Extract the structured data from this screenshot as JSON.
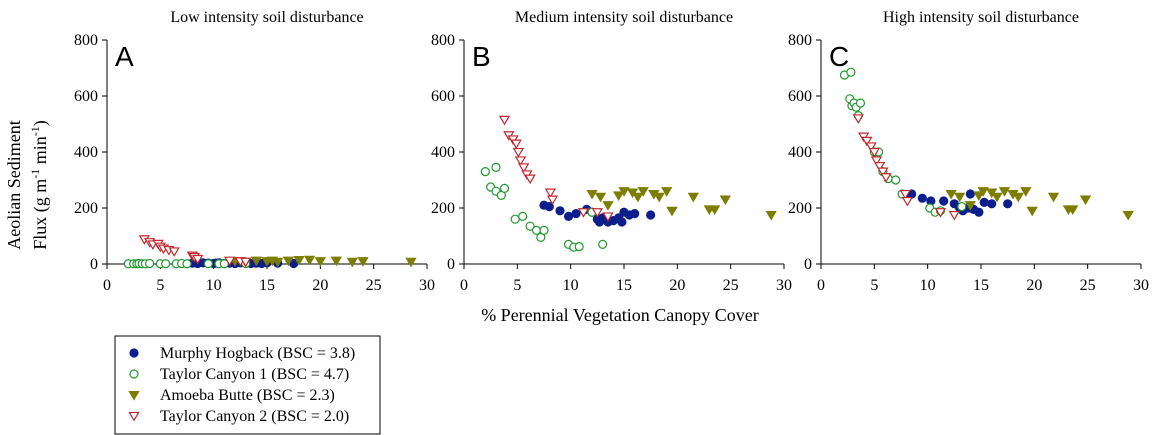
{
  "figure": {
    "xlabel": "% Perennial Vegetation Canopy Cover",
    "ylabel_line1": "Aeolian Sediment",
    "ylabel_line2_prefix": "Flux (g m",
    "ylabel_sup1": "-1",
    "ylabel_mid": " min",
    "ylabel_sup2": "-1",
    "ylabel_suffix": ")"
  },
  "legend": {
    "position": "bottom-left",
    "entries": [
      {
        "key": "murphy",
        "label": "Murphy Hogback (BSC = 3.8)"
      },
      {
        "key": "taylor1",
        "label": "Taylor Canyon 1 (BSC = 4.7)"
      },
      {
        "key": "amoeba",
        "label": "Amoeba Butte (BSC = 2.3)"
      },
      {
        "key": "taylor2",
        "label": "Taylor Canyon 2 (BSC = 2.0)"
      }
    ]
  },
  "series_styles": {
    "murphy": {
      "marker": "filled-circle",
      "color": "#0b1f8c"
    },
    "taylor1": {
      "marker": "open-circle",
      "color": "#1f9a2e"
    },
    "amoeba": {
      "marker": "filled-triangle-down",
      "color": "#7d7d00"
    },
    "taylor2": {
      "marker": "open-triangle-down",
      "color": "#c0282d"
    }
  },
  "chart_data": [
    {
      "type": "scatter",
      "title": "Low intensity soil disturbance",
      "panel_label": "A",
      "xlim": [
        0,
        30
      ],
      "ylim": [
        0,
        800
      ],
      "xticks": [
        0,
        5,
        10,
        15,
        20,
        25,
        30
      ],
      "yticks": [
        0,
        200,
        400,
        600,
        800
      ],
      "grid": false,
      "series": [
        {
          "key": "murphy",
          "name": "Murphy Hogback (BSC = 3.8)",
          "points": [
            [
              8,
              3
            ],
            [
              8.5,
              2
            ],
            [
              9,
              4
            ],
            [
              9.5,
              3
            ],
            [
              10,
              2
            ],
            [
              10.2,
              3
            ],
            [
              10.5,
              4
            ],
            [
              11,
              2
            ],
            [
              11.5,
              3
            ],
            [
              12,
              2
            ],
            [
              12.5,
              4
            ],
            [
              13,
              3
            ],
            [
              13.5,
              2
            ],
            [
              14,
              3
            ],
            [
              14.5,
              2
            ],
            [
              15,
              4
            ],
            [
              16,
              3
            ],
            [
              17.5,
              2
            ]
          ]
        },
        {
          "key": "taylor1",
          "name": "Taylor Canyon 1 (BSC = 4.7)",
          "points": [
            [
              2,
              1
            ],
            [
              2.5,
              1
            ],
            [
              2.8,
              1
            ],
            [
              3,
              2
            ],
            [
              3.3,
              1
            ],
            [
              3.6,
              1
            ],
            [
              4,
              2
            ],
            [
              5,
              1
            ],
            [
              5.5,
              1
            ],
            [
              6.5,
              1
            ],
            [
              7,
              2
            ],
            [
              7.5,
              1
            ],
            [
              9.5,
              1
            ],
            [
              10.5,
              1
            ],
            [
              11,
              1
            ],
            [
              13,
              2
            ]
          ]
        },
        {
          "key": "amoeba",
          "name": "Amoeba Butte (BSC = 2.3)",
          "points": [
            [
              12,
              10
            ],
            [
              13,
              8
            ],
            [
              14,
              12
            ],
            [
              15,
              10
            ],
            [
              15.5,
              12
            ],
            [
              16,
              8
            ],
            [
              17,
              12
            ],
            [
              18,
              14
            ],
            [
              19,
              15
            ],
            [
              20,
              10
            ],
            [
              21.5,
              12
            ],
            [
              23,
              8
            ],
            [
              24,
              10
            ],
            [
              28.5,
              8
            ]
          ]
        },
        {
          "key": "taylor2",
          "name": "Taylor Canyon 2 (BSC = 2.0)",
          "points": [
            [
              3.5,
              88
            ],
            [
              4,
              78
            ],
            [
              4.3,
              70
            ],
            [
              4.8,
              72
            ],
            [
              5,
              62
            ],
            [
              5.3,
              55
            ],
            [
              5.8,
              50
            ],
            [
              6.3,
              45
            ],
            [
              8,
              30
            ],
            [
              8.2,
              25
            ],
            [
              8.5,
              18
            ],
            [
              11.5,
              12
            ],
            [
              12.5,
              10
            ],
            [
              13,
              8
            ]
          ]
        }
      ]
    },
    {
      "type": "scatter",
      "title": "Medium intensity soil disturbance",
      "panel_label": "B",
      "xlim": [
        0,
        30
      ],
      "ylim": [
        0,
        800
      ],
      "xticks": [
        0,
        5,
        10,
        15,
        20,
        25,
        30
      ],
      "yticks": [
        0,
        200,
        400,
        600,
        800
      ],
      "grid": false,
      "series": [
        {
          "key": "murphy",
          "name": "Murphy Hogback (BSC = 3.8)",
          "points": [
            [
              7.5,
              210
            ],
            [
              8,
              205
            ],
            [
              9,
              190
            ],
            [
              9.8,
              170
            ],
            [
              10.5,
              180
            ],
            [
              11.5,
              195
            ],
            [
              12,
              185
            ],
            [
              12.5,
              160
            ],
            [
              12.7,
              150
            ],
            [
              13,
              165
            ],
            [
              13.5,
              150
            ],
            [
              14,
              155
            ],
            [
              14.5,
              165
            ],
            [
              14.8,
              150
            ],
            [
              15,
              185
            ],
            [
              15.5,
              175
            ],
            [
              16,
              180
            ],
            [
              17.5,
              175
            ]
          ]
        },
        {
          "key": "taylor1",
          "name": "Taylor Canyon 1 (BSC = 4.7)",
          "points": [
            [
              2,
              330
            ],
            [
              2.5,
              275
            ],
            [
              3,
              345
            ],
            [
              3,
              260
            ],
            [
              3.5,
              245
            ],
            [
              3.8,
              270
            ],
            [
              4.8,
              160
            ],
            [
              5.5,
              170
            ],
            [
              6.2,
              135
            ],
            [
              6.8,
              120
            ],
            [
              7.2,
              95
            ],
            [
              7.5,
              120
            ],
            [
              9.8,
              70
            ],
            [
              10.3,
              60
            ],
            [
              10.8,
              62
            ],
            [
              13,
              70
            ],
            [
              12,
              185
            ]
          ]
        },
        {
          "key": "amoeba",
          "name": "Amoeba Butte (BSC = 2.3)",
          "points": [
            [
              12,
              250
            ],
            [
              12.8,
              240
            ],
            [
              13.5,
              210
            ],
            [
              14.5,
              245
            ],
            [
              15,
              260
            ],
            [
              15.8,
              255
            ],
            [
              16.3,
              240
            ],
            [
              16.8,
              260
            ],
            [
              17.8,
              250
            ],
            [
              18.3,
              240
            ],
            [
              19,
              260
            ],
            [
              19.5,
              190
            ],
            [
              21.5,
              240
            ],
            [
              23,
              195
            ],
            [
              23.5,
              195
            ],
            [
              24.5,
              230
            ],
            [
              28.8,
              175
            ]
          ]
        },
        {
          "key": "taylor2",
          "name": "Taylor Canyon 2 (BSC = 2.0)",
          "points": [
            [
              3.8,
              515
            ],
            [
              4.2,
              460
            ],
            [
              4.6,
              445
            ],
            [
              4.9,
              430
            ],
            [
              5.1,
              400
            ],
            [
              5.3,
              370
            ],
            [
              5.6,
              345
            ],
            [
              5.9,
              320
            ],
            [
              6.2,
              305
            ],
            [
              8.1,
              255
            ],
            [
              8.3,
              230
            ],
            [
              11.2,
              185
            ],
            [
              12.5,
              185
            ],
            [
              13.5,
              170
            ]
          ]
        }
      ]
    },
    {
      "type": "scatter",
      "title": "High intensity soil disturbance",
      "panel_label": "C",
      "xlim": [
        0,
        30
      ],
      "ylim": [
        0,
        800
      ],
      "xticks": [
        0,
        5,
        10,
        15,
        20,
        25,
        30
      ],
      "yticks": [
        0,
        200,
        400,
        600,
        800
      ],
      "grid": false,
      "series": [
        {
          "key": "murphy",
          "name": "Murphy Hogback (BSC = 3.8)",
          "points": [
            [
              8,
              245
            ],
            [
              8.5,
              250
            ],
            [
              9.5,
              235
            ],
            [
              10.3,
              225
            ],
            [
              11.5,
              225
            ],
            [
              12.5,
              215
            ],
            [
              13,
              200
            ],
            [
              13.3,
              190
            ],
            [
              13.8,
              200
            ],
            [
              14,
              250
            ],
            [
              14.3,
              195
            ],
            [
              14.8,
              185
            ],
            [
              15.3,
              220
            ],
            [
              16,
              215
            ],
            [
              17.5,
              215
            ]
          ]
        },
        {
          "key": "taylor1",
          "name": "Taylor Canyon 1 (BSC = 4.7)",
          "points": [
            [
              2.2,
              675
            ],
            [
              2.8,
              685
            ],
            [
              2.7,
              590
            ],
            [
              2.9,
              565
            ],
            [
              3.1,
              575
            ],
            [
              3.3,
              560
            ],
            [
              3.5,
              530
            ],
            [
              3.7,
              575
            ],
            [
              5,
              400
            ],
            [
              5.4,
              400
            ],
            [
              5.8,
              330
            ],
            [
              6.3,
              305
            ],
            [
              7,
              300
            ],
            [
              7.6,
              250
            ],
            [
              10.2,
              200
            ],
            [
              10.7,
              185
            ],
            [
              11.2,
              190
            ],
            [
              13.2,
              205
            ]
          ]
        },
        {
          "key": "amoeba",
          "name": "Amoeba Butte (BSC = 2.3)",
          "points": [
            [
              12.2,
              250
            ],
            [
              13,
              240
            ],
            [
              14,
              210
            ],
            [
              14.8,
              245
            ],
            [
              15.2,
              260
            ],
            [
              16,
              255
            ],
            [
              16.5,
              240
            ],
            [
              17.2,
              260
            ],
            [
              18,
              250
            ],
            [
              18.5,
              240
            ],
            [
              19.2,
              260
            ],
            [
              19.8,
              190
            ],
            [
              21.8,
              240
            ],
            [
              23.2,
              195
            ],
            [
              23.6,
              195
            ],
            [
              24.8,
              230
            ],
            [
              28.8,
              175
            ]
          ]
        },
        {
          "key": "taylor2",
          "name": "Taylor Canyon 2 (BSC = 2.0)",
          "points": [
            [
              3.5,
              520
            ],
            [
              4,
              455
            ],
            [
              4.3,
              440
            ],
            [
              4.7,
              420
            ],
            [
              5,
              400
            ],
            [
              5.2,
              370
            ],
            [
              5.5,
              350
            ],
            [
              5.8,
              330
            ],
            [
              6.1,
              310
            ],
            [
              7.9,
              250
            ],
            [
              8.1,
              225
            ],
            [
              11.2,
              185
            ],
            [
              12.5,
              175
            ]
          ]
        }
      ]
    }
  ]
}
